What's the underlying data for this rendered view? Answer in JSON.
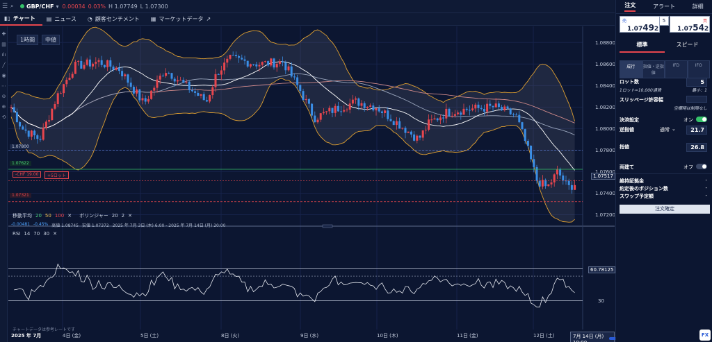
{
  "header": {
    "pair": "GBP/CHF",
    "change": "0.00034",
    "change_pct": "0.03%",
    "high": "H 1.07749",
    "low": "L 1.07300"
  },
  "tabs": [
    {
      "label": "チャート",
      "icon": "chart-icon"
    },
    {
      "label": "ニュース",
      "icon": "news-icon"
    },
    {
      "label": "顧客センチメント",
      "icon": "sentiment-icon"
    },
    {
      "label": "マーケットデータ",
      "icon": "market-data-icon"
    }
  ],
  "chart": {
    "timeframe": "1時間",
    "price_type": "中値",
    "y_ticks": [
      "1.08800",
      "1.08600",
      "1.08400",
      "1.08200",
      "1.08000",
      "1.07800",
      "1.07600",
      "1.07400",
      "1.07200"
    ],
    "current_price": "1.07517",
    "levels": {
      "blue": "1.07800",
      "green": "1.07622",
      "red": "1.07321",
      "position": "-CHF 19.00",
      "position_lots": "+5ロット"
    },
    "ma_legend": {
      "name": "移動平均",
      "p1": "20",
      "p2": "50",
      "p3": "100"
    },
    "bb_legend": {
      "name": "ボリンジャー",
      "p1": "20",
      "p2": "2"
    },
    "sub_info": {
      "chg": "-0.00481",
      "chg_pct": "-0.45%",
      "high": "高値 1.08745",
      "low": "安値 1.07372",
      "range": "2025 年 7月 3日 (木) 6:00 - 2025 年 7月 14日 (月) 20:00"
    },
    "rsi_legend": {
      "name": "RSI",
      "p1": "14",
      "p2": "70",
      "p3": "30"
    },
    "rsi_levels": {
      "upper": "70",
      "lower": "30",
      "value": "60.78125"
    },
    "dates": [
      "2025 年 7月",
      "4日 (金)",
      "5日 (土)",
      "8日 (火)",
      "9日 (水)",
      "10日 (木)",
      "11日 (金)",
      "12日 (土)"
    ],
    "date_end": "7月 14日 (月) 19:00",
    "note": "チャートデータは参考レートです",
    "colors": {
      "up": "#e8464e",
      "down": "#3a8ee6",
      "bb": "#e0a030",
      "ma20": "#ffffff",
      "ma50": "#9aa6bd",
      "ma100": "#d08a8a"
    }
  },
  "panel": {
    "tabs": [
      "注文",
      "アラート",
      "詳細"
    ],
    "sell_label": "売",
    "buy_label": "買",
    "sell_price": "1.07",
    "sell_big": "49",
    "sell_small": "2",
    "buy_price": "1.07",
    "buy_big": "54",
    "buy_small": "2",
    "spread": "5",
    "mode_tabs": [
      "標準",
      "スピード"
    ],
    "order_types": [
      "成行",
      "指値・逆指値",
      "IFD",
      "IFO"
    ],
    "lot_label": "ロット数",
    "lot_value": "5",
    "lot_sub": "1ロット=10,000通貨",
    "lot_min": "最小：1",
    "slippage_label": "スリッページ許容幅",
    "slippage_note": "空欄時は制限なし",
    "settle_label": "決済設定",
    "settle_state": "オン",
    "stop_label": "逆指値",
    "stop_mode": "通常",
    "stop_value": "21.7",
    "limit_label": "指値",
    "limit_value": "26.8",
    "hedge_label": "両建て",
    "hedge_state": "オフ",
    "margin_label": "維持証拠金",
    "position_label": "約定後のポジション数",
    "swap_label": "スワップ予定額",
    "confirm_label": "注文確定"
  }
}
